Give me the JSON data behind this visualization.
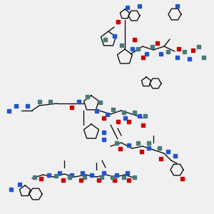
{
  "background_color": "#f0f0f0",
  "title": "",
  "figsize": [
    3.0,
    3.0
  ],
  "dpi": 100,
  "atom_colors": {
    "O": "#cc0000",
    "N": "#2255cc",
    "C_marker": "#4a7a7a",
    "bond": "#111111"
  },
  "ring_color": "#111111",
  "bond_color": "#111111"
}
